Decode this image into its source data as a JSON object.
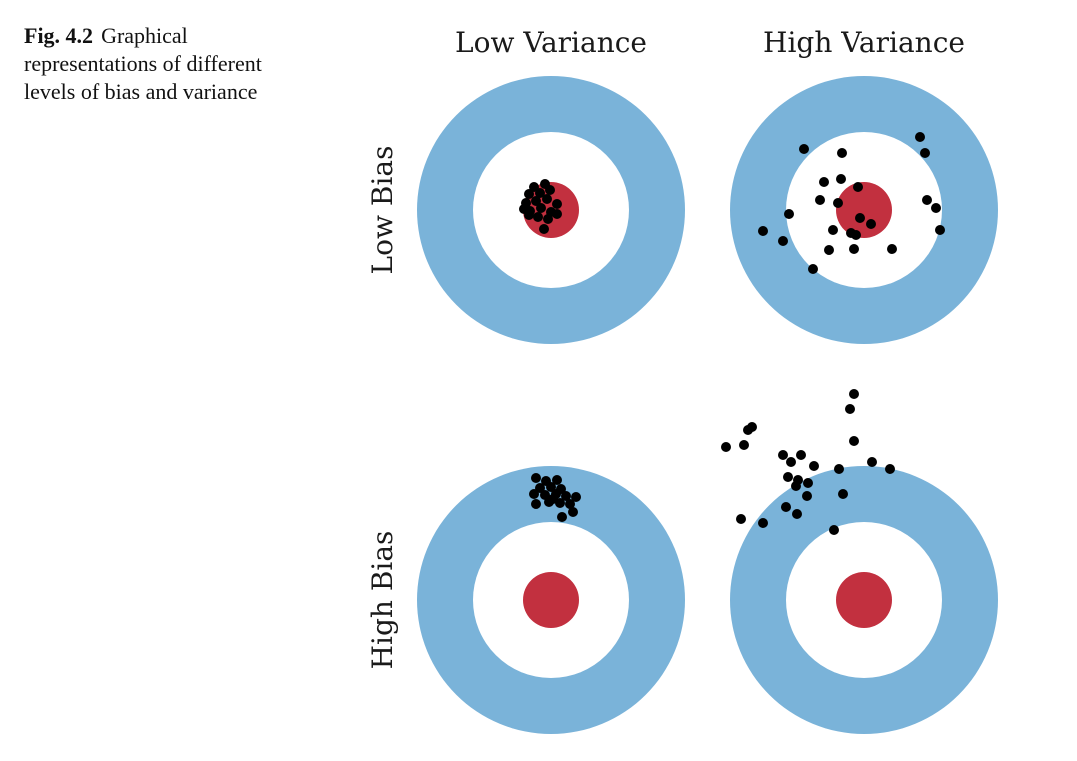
{
  "caption": {
    "label": "Fig. 4.2",
    "text": "Graphical representations of different levels of bias and variance"
  },
  "columns": [
    "Low Variance",
    "High Variance"
  ],
  "rows": [
    "Low Bias",
    "High Bias"
  ],
  "colors": {
    "outer_ring": "#7ab3d9",
    "inner_ring": "#ffffff",
    "bullseye": "#c2303f",
    "dots": "#000000"
  }
}
